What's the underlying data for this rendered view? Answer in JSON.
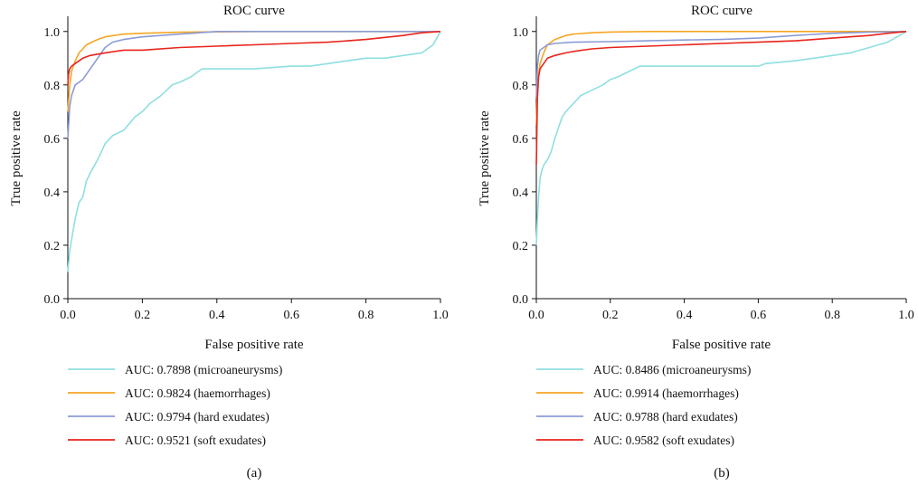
{
  "chart_data": [
    {
      "type": "line",
      "title": "ROC curve",
      "xlabel": "False positive rate",
      "ylabel": "True positive rate",
      "xlim": [
        0,
        1
      ],
      "ylim": [
        0,
        1.05
      ],
      "xticks": [
        "0.0",
        "0.2",
        "0.4",
        "0.6",
        "0.8",
        "1.0"
      ],
      "yticks": [
        "0.0",
        "0.2",
        "0.4",
        "0.6",
        "0.8",
        "1.0"
      ],
      "grid": false,
      "legend_position": "below",
      "panel_label": "(a)",
      "series": [
        {
          "name": "AUC: 0.7898 (microaneurysms)",
          "color": "#8fdfe0",
          "x": [
            0,
            0.005,
            0.01,
            0.02,
            0.03,
            0.04,
            0.05,
            0.06,
            0.08,
            0.1,
            0.12,
            0.15,
            0.18,
            0.2,
            0.22,
            0.25,
            0.28,
            0.3,
            0.33,
            0.36,
            0.38,
            0.4,
            0.5,
            0.6,
            0.65,
            0.7,
            0.75,
            0.8,
            0.85,
            0.9,
            0.95,
            0.98,
            1.0
          ],
          "y": [
            0.1,
            0.18,
            0.22,
            0.3,
            0.36,
            0.38,
            0.44,
            0.47,
            0.52,
            0.58,
            0.61,
            0.63,
            0.68,
            0.7,
            0.73,
            0.76,
            0.8,
            0.81,
            0.83,
            0.86,
            0.86,
            0.86,
            0.86,
            0.87,
            0.87,
            0.88,
            0.89,
            0.9,
            0.9,
            0.91,
            0.92,
            0.95,
            1.0
          ]
        },
        {
          "name": "AUC: 0.9824 (haemorrhages)",
          "color": "#f5a623",
          "x": [
            0,
            0.005,
            0.01,
            0.02,
            0.03,
            0.05,
            0.08,
            0.1,
            0.15,
            0.2,
            0.3,
            0.5,
            0.7,
            1.0
          ],
          "y": [
            0.7,
            0.8,
            0.85,
            0.89,
            0.92,
            0.95,
            0.97,
            0.98,
            0.99,
            0.993,
            0.997,
            1.0,
            1.0,
            1.0
          ]
        },
        {
          "name": "AUC: 0.9794 (hard exudates)",
          "color": "#8b9bd6",
          "x": [
            0,
            0.005,
            0.01,
            0.02,
            0.04,
            0.06,
            0.08,
            0.1,
            0.12,
            0.15,
            0.2,
            0.3,
            0.4,
            0.6,
            0.8,
            1.0
          ],
          "y": [
            0.6,
            0.72,
            0.76,
            0.8,
            0.82,
            0.86,
            0.9,
            0.94,
            0.96,
            0.97,
            0.98,
            0.99,
            1.0,
            1.0,
            1.0,
            1.0
          ]
        },
        {
          "name": "AUC: 0.9521 (soft exudates)",
          "color": "#e8241b",
          "x": [
            0,
            0.002,
            0.005,
            0.01,
            0.02,
            0.04,
            0.06,
            0.1,
            0.15,
            0.2,
            0.3,
            0.4,
            0.5,
            0.6,
            0.7,
            0.8,
            0.9,
            0.95,
            1.0
          ],
          "y": [
            0.8,
            0.84,
            0.86,
            0.87,
            0.88,
            0.9,
            0.91,
            0.92,
            0.93,
            0.93,
            0.94,
            0.945,
            0.95,
            0.955,
            0.96,
            0.97,
            0.985,
            0.995,
            1.0
          ]
        }
      ]
    },
    {
      "type": "line",
      "title": "ROC curve",
      "xlabel": "False positive rate",
      "ylabel": "True positive rate",
      "xlim": [
        0,
        1
      ],
      "ylim": [
        0,
        1.05
      ],
      "xticks": [
        "0.0",
        "0.2",
        "0.4",
        "0.6",
        "0.8",
        "1.0"
      ],
      "yticks": [
        "0.0",
        "0.2",
        "0.4",
        "0.6",
        "0.8",
        "1.0"
      ],
      "grid": false,
      "legend_position": "below",
      "panel_label": "(b)",
      "series": [
        {
          "name": "AUC: 0.8486 (microaneurysms)",
          "color": "#8fdfe0",
          "x": [
            0,
            0.003,
            0.006,
            0.01,
            0.015,
            0.02,
            0.03,
            0.04,
            0.05,
            0.06,
            0.07,
            0.08,
            0.1,
            0.12,
            0.15,
            0.18,
            0.2,
            0.22,
            0.25,
            0.28,
            0.3,
            0.35,
            0.4,
            0.5,
            0.6,
            0.62,
            0.7,
            0.75,
            0.8,
            0.85,
            0.9,
            0.95,
            1.0
          ],
          "y": [
            0.2,
            0.3,
            0.38,
            0.45,
            0.48,
            0.5,
            0.52,
            0.55,
            0.6,
            0.64,
            0.68,
            0.7,
            0.73,
            0.76,
            0.78,
            0.8,
            0.82,
            0.83,
            0.85,
            0.87,
            0.87,
            0.87,
            0.87,
            0.87,
            0.87,
            0.88,
            0.89,
            0.9,
            0.91,
            0.92,
            0.94,
            0.96,
            1.0
          ]
        },
        {
          "name": "AUC: 0.9914 (haemorrhages)",
          "color": "#f5a623",
          "x": [
            0,
            0.003,
            0.006,
            0.01,
            0.02,
            0.03,
            0.05,
            0.08,
            0.1,
            0.15,
            0.2,
            0.3,
            0.5,
            0.7,
            1.0
          ],
          "y": [
            0.65,
            0.78,
            0.84,
            0.88,
            0.92,
            0.95,
            0.97,
            0.985,
            0.99,
            0.995,
            0.998,
            1.0,
            1.0,
            1.0,
            1.0
          ]
        },
        {
          "name": "AUC: 0.9788 (hard exudates)",
          "color": "#8b9bd6",
          "x": [
            0,
            0.003,
            0.006,
            0.01,
            0.02,
            0.03,
            0.05,
            0.1,
            0.2,
            0.3,
            0.4,
            0.5,
            0.6,
            0.7,
            0.8,
            0.9,
            1.0
          ],
          "y": [
            0.75,
            0.87,
            0.91,
            0.93,
            0.94,
            0.95,
            0.955,
            0.96,
            0.962,
            0.965,
            0.968,
            0.97,
            0.975,
            0.985,
            0.993,
            0.998,
            1.0
          ]
        },
        {
          "name": "AUC: 0.9582 (soft exudates)",
          "color": "#e8241b",
          "x": [
            0,
            0.003,
            0.006,
            0.01,
            0.02,
            0.03,
            0.05,
            0.08,
            0.1,
            0.15,
            0.2,
            0.3,
            0.4,
            0.5,
            0.6,
            0.7,
            0.8,
            0.9,
            0.95,
            1.0
          ],
          "y": [
            0.5,
            0.75,
            0.83,
            0.86,
            0.88,
            0.9,
            0.91,
            0.92,
            0.925,
            0.935,
            0.94,
            0.945,
            0.95,
            0.955,
            0.96,
            0.965,
            0.975,
            0.985,
            0.993,
            1.0
          ]
        }
      ]
    }
  ]
}
